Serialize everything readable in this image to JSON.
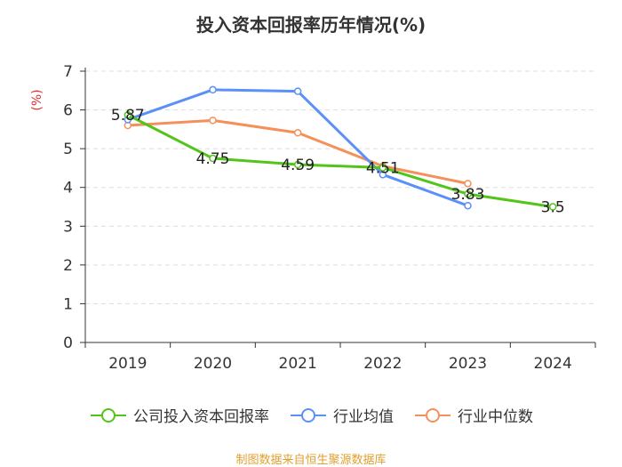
{
  "chart_data": {
    "type": "line",
    "title": "投入资本回报率历年情况(%)",
    "ylabel": "(%)",
    "xlabel": "",
    "categories": [
      "2019",
      "2020",
      "2021",
      "2022",
      "2023",
      "2024"
    ],
    "ylim": [
      0,
      7
    ],
    "yticks": [
      "0",
      "1",
      "2",
      "3",
      "4",
      "5",
      "6",
      "7"
    ],
    "grid": true,
    "series": [
      {
        "name": "公司投入资本回报率",
        "color": "#52c41a",
        "values": [
          5.87,
          4.75,
          4.59,
          4.51,
          3.83,
          3.5
        ],
        "labels": [
          "5.87",
          "4.75",
          "4.59",
          "4.51",
          "3.83",
          "3.5"
        ]
      },
      {
        "name": "行业均值",
        "color": "#5b8ff9",
        "values": [
          5.75,
          6.52,
          6.48,
          4.33,
          3.53,
          null
        ]
      },
      {
        "name": "行业中位数",
        "color": "#f5905a",
        "values": [
          5.6,
          5.73,
          5.41,
          4.55,
          4.1,
          null
        ]
      }
    ],
    "legend_position": "bottom"
  },
  "source": "制图数据来自恒生聚源数据库",
  "ylabel_color": "#e03030"
}
